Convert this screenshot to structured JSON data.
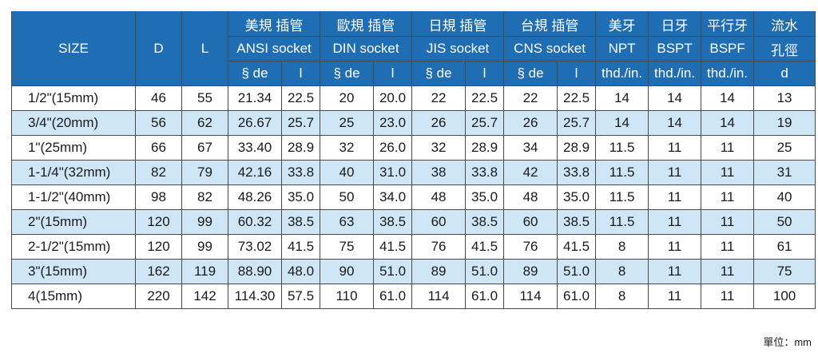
{
  "header": {
    "size": "SIZE",
    "d": "D",
    "l": "L",
    "groups": [
      {
        "cn": "美規 插管",
        "en": "ANSI socket"
      },
      {
        "cn": "歐規 插管",
        "en": "DIN socket"
      },
      {
        "cn": "日規 插管",
        "en": "JIS socket"
      },
      {
        "cn": "台規 插管",
        "en": "CNS socket"
      }
    ],
    "sub_de": "§ de",
    "sub_l": "l",
    "thread_cols": [
      {
        "cn": "美牙",
        "en": "NPT",
        "unit": "thd./in."
      },
      {
        "cn": "日牙",
        "en": "BSPT",
        "unit": "thd./in."
      },
      {
        "cn": "平行牙",
        "en": "BSPF",
        "unit": "thd./in."
      }
    ],
    "flow": {
      "cn1": "流水",
      "cn2": "孔徑",
      "unit": "d"
    }
  },
  "rows": [
    [
      "1/2\"(15mm)",
      "46",
      "55",
      "21.34",
      "22.5",
      "20",
      "20.0",
      "22",
      "22.5",
      "22",
      "22.5",
      "14",
      "14",
      "14",
      "13"
    ],
    [
      "3/4\"(20mm)",
      "56",
      "62",
      "26.67",
      "25.7",
      "25",
      "23.0",
      "26",
      "25.7",
      "26",
      "25.7",
      "14",
      "14",
      "14",
      "19"
    ],
    [
      "1\"(25mm)",
      "66",
      "67",
      "33.40",
      "28.9",
      "32",
      "26.0",
      "32",
      "28.9",
      "34",
      "28.9",
      "11.5",
      "11",
      "11",
      "25"
    ],
    [
      "1-1/4\"(32mm)",
      "82",
      "79",
      "42.16",
      "33.8",
      "40",
      "31.0",
      "38",
      "33.8",
      "42",
      "33.8",
      "11.5",
      "11",
      "11",
      "31"
    ],
    [
      "1-1/2\"(40mm)",
      "98",
      "82",
      "48.26",
      "35.0",
      "50",
      "34.0",
      "48",
      "35.0",
      "48",
      "35.0",
      "11.5",
      "11",
      "11",
      "40"
    ],
    [
      "2\"(15mm)",
      "120",
      "99",
      "60.32",
      "38.5",
      "63",
      "38.5",
      "60",
      "38.5",
      "60",
      "38.5",
      "11.5",
      "11",
      "11",
      "50"
    ],
    [
      "2-1/2\"(15mm)",
      "120",
      "99",
      "73.02",
      "41.5",
      "75",
      "41.5",
      "76",
      "41.5",
      "76",
      "41.5",
      "8",
      "11",
      "11",
      "61"
    ],
    [
      "3\"(15mm)",
      "162",
      "119",
      "88.90",
      "48.0",
      "90",
      "51.0",
      "89",
      "51.0",
      "89",
      "51.0",
      "8",
      "11",
      "11",
      "75"
    ],
    [
      "4(15mm)",
      "220",
      "142",
      "114.30",
      "57.5",
      "110",
      "61.0",
      "114",
      "61.0",
      "114",
      "61.0",
      "8",
      "11",
      "11",
      "100"
    ]
  ],
  "unit_note": "單位：mm"
}
